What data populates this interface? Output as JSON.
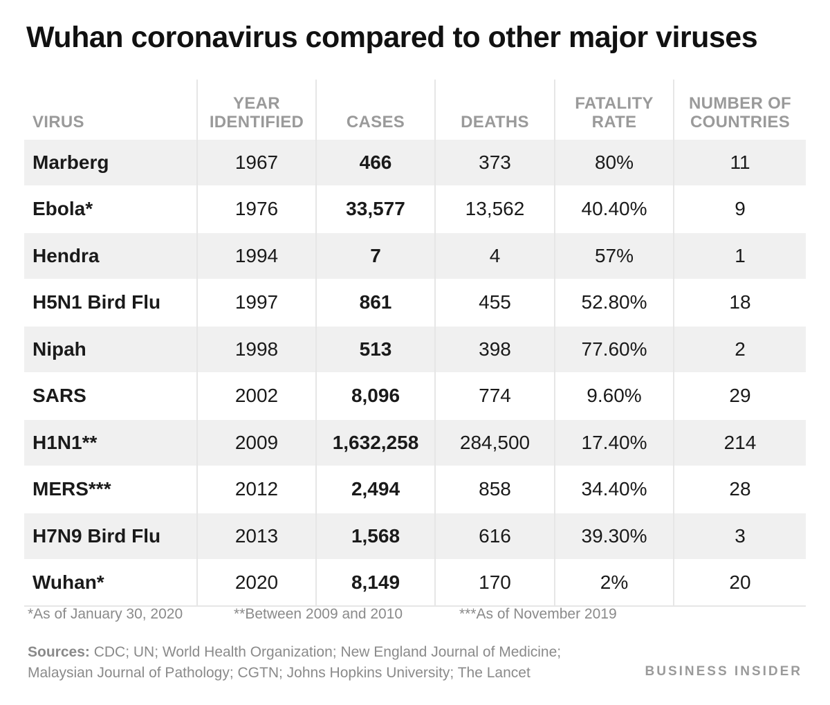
{
  "chart_data": {
    "type": "table",
    "title": "Wuhan coronavirus compared to other major viruses",
    "columns": [
      "VIRUS",
      "YEAR IDENTIFIED",
      "CASES",
      "DEATHS",
      "FATALITY RATE",
      "NUMBER OF COUNTRIES"
    ],
    "rows": [
      [
        "Marberg",
        "1967",
        "466",
        "373",
        "80%",
        "11"
      ],
      [
        "Ebola*",
        "1976",
        "33,577",
        "13,562",
        "40.40%",
        "9"
      ],
      [
        "Hendra",
        "1994",
        "7",
        "4",
        "57%",
        "1"
      ],
      [
        "H5N1 Bird Flu",
        "1997",
        "861",
        "455",
        "52.80%",
        "18"
      ],
      [
        "Nipah",
        "1998",
        "513",
        "398",
        "77.60%",
        "2"
      ],
      [
        "SARS",
        "2002",
        "8,096",
        "774",
        "9.60%",
        "29"
      ],
      [
        "H1N1**",
        "2009",
        "1,632,258",
        "284,500",
        "17.40%",
        "214"
      ],
      [
        "MERS***",
        "2012",
        "2,494",
        "858",
        "34.40%",
        "28"
      ],
      [
        "H7N9 Bird Flu",
        "2013",
        "1,568",
        "616",
        "39.30%",
        "3"
      ],
      [
        "Wuhan*",
        "2020",
        "8,149",
        "170",
        "2%",
        "20"
      ]
    ],
    "footnotes": [
      "*As of January 30, 2020",
      "**Between 2009 and 2010",
      "***As of November 2019"
    ],
    "sources_label": "Sources:",
    "sources_line1": " CDC; UN; World Health Organization; New England Journal of Medicine;",
    "sources_line2": "Malaysian Journal of Pathology; CGTN; Johns Hopkins University; The Lancet",
    "brand": "BUSINESS INSIDER"
  },
  "colors": {
    "header_text": "#9a9a9a",
    "stripe": "#f0f0f0",
    "divider": "#e6e6e6",
    "footnote_text": "#8a8a8a"
  }
}
